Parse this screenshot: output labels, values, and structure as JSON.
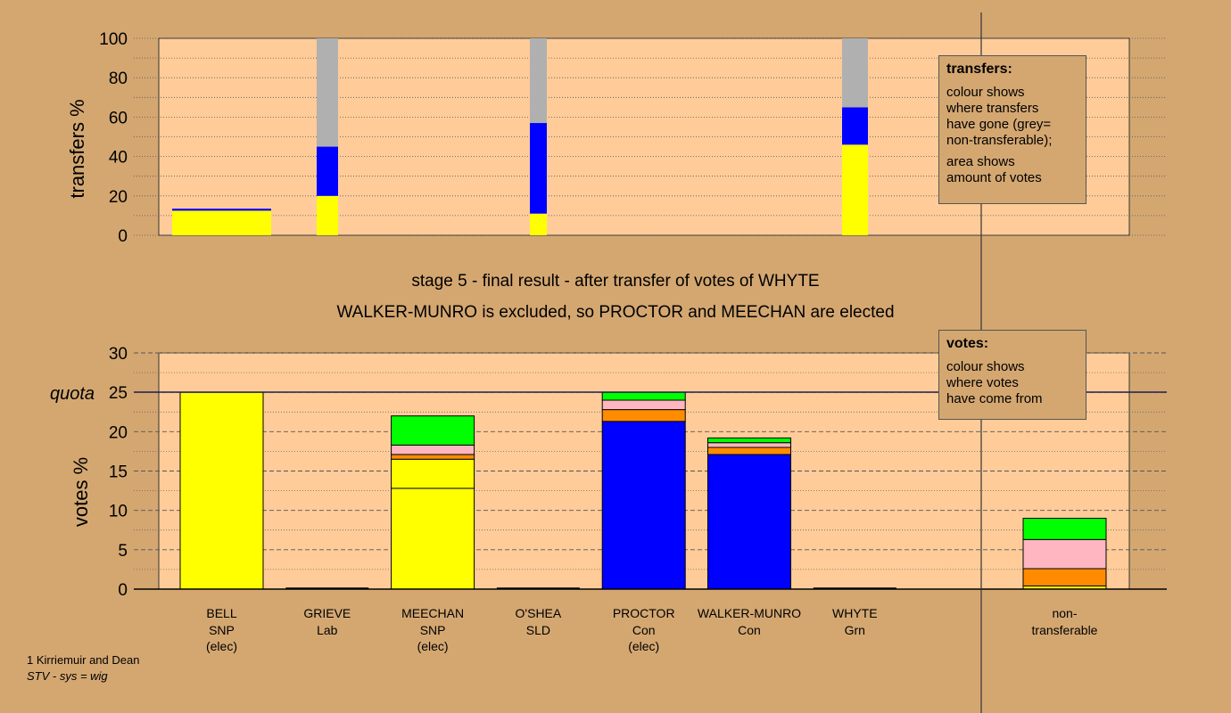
{
  "header": {
    "stage_line": "stage 5 - final result - after transfer of votes of WHYTE",
    "result_line": "WALKER-MUNRO is excluded, so PROCTOR and MEECHAN are elected"
  },
  "legends": {
    "transfers": {
      "title": "transfers:",
      "lines": [
        "colour shows",
        "where transfers",
        "have gone (grey=",
        "non-transferable);",
        "",
        "area shows",
        "amount of votes"
      ]
    },
    "votes": {
      "title": "votes:",
      "lines": [
        "colour shows",
        "where votes",
        "have come from"
      ]
    }
  },
  "footer": {
    "line1": "1 Kirriemuir and Dean",
    "line2": "STV - sys = wig"
  },
  "colors": {
    "SNP": "#ffff00",
    "Lab": "#ff8c00",
    "SLD": "#ffb6c1",
    "Con": "#0000ff",
    "Grn": "#00ff00",
    "non-transferable": "#b0b0b0",
    "plot_bg": "#ffcc99",
    "page_bg": "#d4a771",
    "quota_line": "#1e1e50"
  },
  "chart_data": [
    {
      "type": "bar",
      "stacked": true,
      "title": "",
      "xlabel": "",
      "ylabel": "transfers %",
      "ylim": [
        0,
        100
      ],
      "yticks": [
        0,
        20,
        40,
        60,
        80,
        100
      ],
      "grid": true,
      "note": "transfers from each candidate; bar width reflects amount of votes transferred",
      "bars": [
        {
          "from": "BELL",
          "segments": [
            {
              "party": "SNP",
              "value": 12.5
            },
            {
              "party": "Con",
              "value": 1
            }
          ]
        },
        {
          "from": "GRIEVE",
          "segments": [
            {
              "party": "SNP",
              "value": 20
            },
            {
              "party": "Con",
              "value": 25
            },
            {
              "party": "non-transferable",
              "value": 55
            }
          ]
        },
        {
          "from": "O'SHEA",
          "segments": [
            {
              "party": "SNP",
              "value": 11
            },
            {
              "party": "Con",
              "value": 46
            },
            {
              "party": "non-transferable",
              "value": 43
            }
          ]
        },
        {
          "from": "WHYTE",
          "segments": [
            {
              "party": "SNP",
              "value": 46
            },
            {
              "party": "Con",
              "value": 19
            },
            {
              "party": "non-transferable",
              "value": 35
            }
          ]
        }
      ]
    },
    {
      "type": "bar",
      "stacked": true,
      "title": "",
      "xlabel": "",
      "ylabel": "votes %",
      "ylim": [
        0,
        30
      ],
      "yticks": [
        0,
        5,
        10,
        15,
        20,
        25,
        30
      ],
      "grid": true,
      "quota": 25,
      "quota_label": "quota",
      "candidates": [
        {
          "name": "BELL",
          "party": "SNP",
          "status": "(elec)",
          "segments": [
            {
              "party": "SNP",
              "value": 25
            }
          ]
        },
        {
          "name": "GRIEVE",
          "party": "Lab",
          "status": "",
          "segments": []
        },
        {
          "name": "MEECHAN",
          "party": "SNP",
          "status": "(elec)",
          "segments": [
            {
              "party": "SNP",
              "value": 12.8
            },
            {
              "party": "SNP",
              "value": 3.7
            },
            {
              "party": "Lab",
              "value": 0.6
            },
            {
              "party": "SLD",
              "value": 1.2
            },
            {
              "party": "Grn",
              "value": 3.7
            }
          ]
        },
        {
          "name": "O'SHEA",
          "party": "SLD",
          "status": "",
          "segments": []
        },
        {
          "name": "PROCTOR",
          "party": "Con",
          "status": "(elec)",
          "segments": [
            {
              "party": "Con",
              "value": 21.3
            },
            {
              "party": "Lab",
              "value": 1.5
            },
            {
              "party": "SLD",
              "value": 1.2
            },
            {
              "party": "Grn",
              "value": 1.0
            }
          ]
        },
        {
          "name": "WALKER-MUNRO",
          "party": "Con",
          "status": "",
          "segments": [
            {
              "party": "Con",
              "value": 17.1
            },
            {
              "party": "Lab",
              "value": 0.9
            },
            {
              "party": "SLD",
              "value": 0.6
            },
            {
              "party": "Grn",
              "value": 0.6
            }
          ]
        },
        {
          "name": "WHYTE",
          "party": "Grn",
          "status": "",
          "segments": []
        }
      ],
      "nontransferable": {
        "label_line1": "non-",
        "label_line2": "transferable",
        "segments": [
          {
            "party": "SNP",
            "value": 0.4
          },
          {
            "party": "Lab",
            "value": 2.2
          },
          {
            "party": "SLD",
            "value": 3.7
          },
          {
            "party": "Grn",
            "value": 2.7
          }
        ]
      }
    }
  ]
}
